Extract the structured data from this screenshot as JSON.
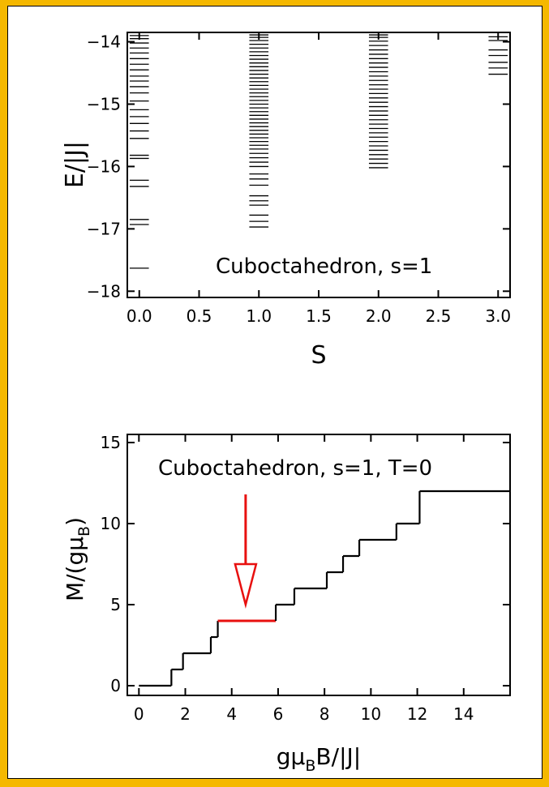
{
  "chart_data": [
    {
      "type": "scatter",
      "title": "",
      "annotation": "Cuboctahedron, s=1",
      "xlabel": "S",
      "ylabel": "E/|J|",
      "xlim": [
        -0.1,
        3.1
      ],
      "ylim": [
        -18.1,
        -13.85
      ],
      "xticks": [
        0.0,
        0.5,
        1.0,
        1.5,
        2.0,
        2.5,
        3.0
      ],
      "xtick_labels": [
        "0.0",
        "0.5",
        "1.0",
        "1.5",
        "2.0",
        "2.5",
        "3.0"
      ],
      "yticks": [
        -14,
        -15,
        -16,
        -17,
        -18
      ],
      "ytick_labels": [
        "−14",
        "−15",
        "−16",
        "−17",
        "−18"
      ],
      "grid": false,
      "level_halfwidth_S": 0.08,
      "series": [
        {
          "S": 0,
          "energies": [
            -17.63,
            -16.93,
            -16.85,
            -16.32,
            -16.22,
            -15.87,
            -15.82,
            -15.55,
            -15.43,
            -15.31,
            -15.2,
            -15.09,
            -14.95,
            -14.82,
            -14.72,
            -14.63,
            -14.55,
            -14.45,
            -14.36,
            -14.27,
            -14.18,
            -14.1,
            -14.02,
            -13.95,
            -13.9
          ]
        },
        {
          "S": 1,
          "energies": [
            -16.97,
            -16.88,
            -16.78,
            -16.62,
            -16.55,
            -16.47,
            -16.3,
            -16.2,
            -16.12,
            -16.0,
            -15.93,
            -15.86,
            -15.79,
            -15.72,
            -15.66,
            -15.6,
            -15.54,
            -15.48,
            -15.42,
            -15.36,
            -15.3,
            -15.24,
            -15.18,
            -15.12,
            -15.06,
            -15.0,
            -14.94,
            -14.88,
            -14.82,
            -14.76,
            -14.7,
            -14.64,
            -14.58,
            -14.52,
            -14.46,
            -14.4,
            -14.34,
            -14.28,
            -14.22,
            -14.16,
            -14.1,
            -14.04,
            -13.98,
            -13.93,
            -13.89
          ]
        },
        {
          "S": 2,
          "energies": [
            -16.02,
            -15.95,
            -15.88,
            -15.81,
            -15.74,
            -15.67,
            -15.6,
            -15.53,
            -15.46,
            -15.39,
            -15.32,
            -15.25,
            -15.18,
            -15.11,
            -15.04,
            -14.97,
            -14.9,
            -14.83,
            -14.76,
            -14.69,
            -14.62,
            -14.55,
            -14.48,
            -14.41,
            -14.34,
            -14.27,
            -14.2,
            -14.13,
            -14.06,
            -13.99,
            -13.93,
            -13.89
          ]
        },
        {
          "S": 3,
          "energies": [
            -14.52,
            -14.42,
            -14.33,
            -14.22,
            -14.13,
            -13.98,
            -13.92
          ]
        }
      ]
    },
    {
      "type": "line",
      "title": "",
      "annotation": "Cuboctahedron, s=1, T=0",
      "xlabel_main": "gμ",
      "xlabel_sub": "B",
      "xlabel_tail": "B/|J|",
      "ylabel_main": "M/(gμ",
      "ylabel_sub": "B",
      "ylabel_tail": ")",
      "xlim": [
        -0.5,
        16
      ],
      "ylim": [
        -0.6,
        15.5
      ],
      "xticks": [
        0,
        2,
        4,
        6,
        8,
        10,
        12,
        14
      ],
      "xtick_labels": [
        "0",
        "2",
        "4",
        "6",
        "8",
        "10",
        "12",
        "14"
      ],
      "yticks": [
        0,
        5,
        10,
        15
      ],
      "ytick_labels": [
        "0",
        "5",
        "10",
        "15"
      ],
      "grid": false,
      "steps": [
        {
          "x_start": 0,
          "x_end": 1.4,
          "M": 0
        },
        {
          "x_start": 1.4,
          "x_end": 1.9,
          "M": 1
        },
        {
          "x_start": 1.9,
          "x_end": 3.1,
          "M": 2
        },
        {
          "x_start": 3.1,
          "x_end": 3.4,
          "M": 3
        },
        {
          "x_start": 3.4,
          "x_end": 5.9,
          "M": 4
        },
        {
          "x_start": 5.9,
          "x_end": 6.7,
          "M": 5
        },
        {
          "x_start": 6.7,
          "x_end": 8.1,
          "M": 6
        },
        {
          "x_start": 8.1,
          "x_end": 8.8,
          "M": 7
        },
        {
          "x_start": 8.8,
          "x_end": 9.5,
          "M": 8
        },
        {
          "x_start": 9.5,
          "x_end": 11.1,
          "M": 9
        },
        {
          "x_start": 11.1,
          "x_end": 12.1,
          "M": 10
        },
        {
          "x_start": 12.1,
          "x_end": 16,
          "M": 12
        }
      ],
      "highlight_plateau": {
        "x_start": 3.4,
        "x_end": 5.9,
        "M": 4
      },
      "arrow": {
        "x": 4.6,
        "y_from": 11.8,
        "y_to": 5.0
      },
      "colors": {
        "line": "#000000",
        "highlight": "#e8100f"
      }
    }
  ]
}
